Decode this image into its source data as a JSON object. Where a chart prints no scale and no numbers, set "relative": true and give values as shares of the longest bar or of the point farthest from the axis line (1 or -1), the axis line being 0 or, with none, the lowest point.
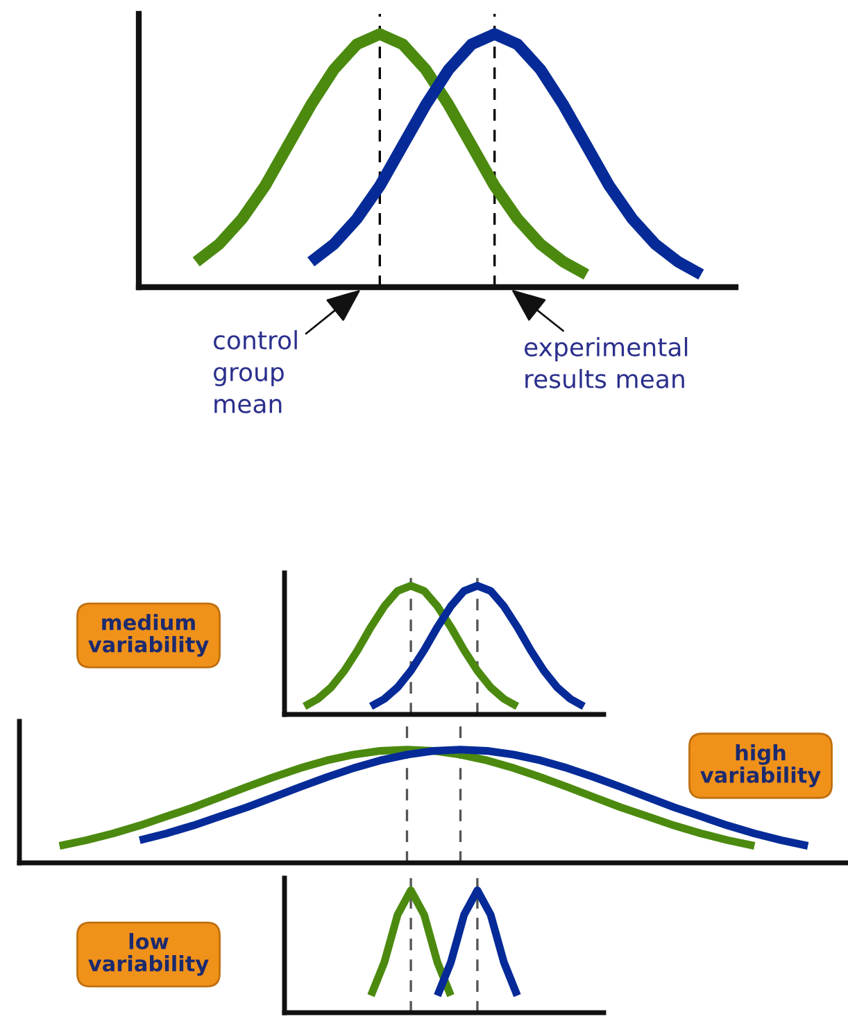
{
  "chart_data": [
    {
      "type": "line",
      "relative": true,
      "categories": [
        null,
        null,
        null,
        null,
        null,
        null,
        null,
        null,
        null,
        null,
        null,
        null,
        null,
        null,
        null,
        null,
        null,
        null,
        null,
        null,
        null,
        null,
        null,
        null,
        null,
        null
      ],
      "series": [
        {
          "color": "#4b8a0f",
          "values": [
            null,
            null,
            0.1,
            0.17,
            0.27,
            0.4,
            0.56,
            0.72,
            0.86,
            0.96,
            1,
            0.96,
            0.86,
            0.72,
            0.56,
            0.4,
            0.27,
            0.17,
            0.1,
            0.05,
            null,
            null,
            null,
            null,
            null,
            null
          ]
        },
        {
          "color": "#062b98",
          "values": [
            null,
            null,
            null,
            null,
            null,
            null,
            null,
            0.1,
            0.17,
            0.27,
            0.4,
            0.56,
            0.72,
            0.86,
            0.96,
            1,
            0.96,
            0.86,
            0.72,
            0.56,
            0.4,
            0.27,
            0.17,
            0.1,
            0.05,
            null
          ]
        }
      ],
      "annotations": [
        "control\ngroup\nmean",
        "experimental\nresults mean"
      ],
      "legend": false
    },
    {
      "type": "line",
      "relative": true,
      "categories": [
        null,
        null,
        null,
        null,
        null,
        null,
        null,
        null,
        null,
        null,
        null,
        null,
        null,
        null,
        null,
        null,
        null,
        null,
        null,
        null,
        null,
        null,
        null,
        null
      ],
      "series": [
        {
          "color": "#4b8a0f",
          "values": [
            null,
            0.063,
            0.12,
            0.21,
            0.34,
            0.5,
            0.68,
            0.84,
            0.96,
            1,
            0.96,
            0.84,
            0.68,
            0.5,
            0.34,
            0.21,
            0.12,
            0.063,
            null,
            null,
            null,
            null,
            null,
            null
          ]
        },
        {
          "color": "#062b98",
          "values": [
            null,
            null,
            null,
            null,
            null,
            null,
            0.063,
            0.12,
            0.21,
            0.34,
            0.5,
            0.68,
            0.84,
            0.96,
            1,
            0.96,
            0.84,
            0.68,
            0.5,
            0.34,
            0.21,
            0.12,
            0.063,
            null
          ]
        }
      ],
      "annotations": [
        "medium\nvariability"
      ],
      "legend": false
    },
    {
      "type": "line",
      "relative": true,
      "categories": [
        null,
        null,
        null,
        null,
        null,
        null,
        null,
        null,
        null,
        null,
        null,
        null,
        null,
        null,
        null,
        null,
        null,
        null,
        null,
        null,
        null,
        null,
        null,
        null,
        null,
        null,
        null,
        null,
        null,
        null,
        null
      ],
      "series": [
        {
          "color": "#4b8a0f",
          "values": [
            null,
            0.15,
            0.2,
            0.26,
            0.33,
            0.41,
            0.49,
            0.58,
            0.67,
            0.757,
            0.837,
            0.905,
            0.956,
            0.989,
            1,
            0.989,
            0.956,
            0.905,
            0.837,
            0.757,
            0.67,
            0.58,
            0.49,
            0.41,
            0.33,
            0.26,
            0.2,
            0.15,
            null,
            null,
            null
          ]
        },
        {
          "color": "#062b98",
          "values": [
            null,
            null,
            null,
            null,
            0.2,
            0.26,
            0.33,
            0.41,
            0.49,
            0.58,
            0.67,
            0.757,
            0.837,
            0.905,
            0.956,
            0.989,
            1,
            0.989,
            0.956,
            0.905,
            0.837,
            0.757,
            0.67,
            0.58,
            0.49,
            0.41,
            0.33,
            0.26,
            0.2,
            0.15,
            null
          ]
        }
      ],
      "annotations": [
        "high\nvariability"
      ],
      "legend": false
    },
    {
      "type": "line",
      "relative": true,
      "categories": [
        null,
        null,
        null,
        null,
        null,
        null,
        null,
        null,
        null,
        null,
        null,
        null,
        null,
        null,
        null,
        null,
        null,
        null,
        null,
        null,
        null,
        null,
        null,
        null
      ],
      "series": [
        {
          "color": "#4b8a0f",
          "values": [
            null,
            null,
            null,
            null,
            null,
            null,
            0.14,
            0.41,
            0.8,
            1,
            0.8,
            0.41,
            0.14,
            null,
            null,
            null,
            null,
            null,
            null,
            null,
            null,
            null,
            null,
            null
          ]
        },
        {
          "color": "#062b98",
          "values": [
            null,
            null,
            null,
            null,
            null,
            null,
            null,
            null,
            null,
            null,
            null,
            0.14,
            0.41,
            0.8,
            1,
            0.8,
            0.41,
            0.14,
            null,
            null,
            null,
            null,
            null,
            null
          ]
        }
      ],
      "annotations": [
        "low\nvariability"
      ],
      "legend": false
    }
  ]
}
